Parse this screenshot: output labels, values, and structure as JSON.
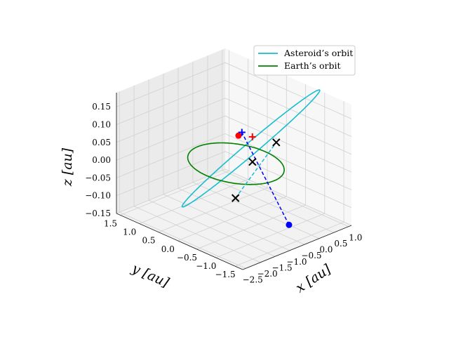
{
  "chart_data": {
    "type": "line",
    "projection": "3d",
    "title": "",
    "xlabel": "x [au]",
    "ylabel": "y [au]",
    "zlabel": "z [au]",
    "xlim": [
      -2.6,
      1.1
    ],
    "ylim": [
      -1.7,
      1.6
    ],
    "zlim": [
      -0.15,
      0.19
    ],
    "x_ticks": [
      -2.5,
      -2.0,
      -1.5,
      -1.0,
      -0.5,
      0.0,
      0.5,
      1.0
    ],
    "x_tick_labels": [
      "−2.5",
      "−2.0",
      "−1.5",
      "−1.0",
      "−0.5",
      "0.0",
      "0.5",
      "1.0"
    ],
    "y_ticks": [
      -1.5,
      -1.0,
      -0.5,
      0.0,
      0.5,
      1.0,
      1.5
    ],
    "y_tick_labels": [
      "−1.5",
      "−1.0",
      "−0.5",
      "0.0",
      "0.5",
      "1.0",
      "1.5"
    ],
    "z_ticks": [
      -0.15,
      -0.1,
      -0.05,
      0.0,
      0.05,
      0.1,
      0.15
    ],
    "z_tick_labels": [
      "−0.15",
      "−0.10",
      "−0.05",
      "0.00",
      "0.05",
      "0.10",
      "0.15"
    ],
    "grid": true,
    "legend_position": "top-right",
    "series": [
      {
        "name": "Asteroid’s orbit",
        "color": "#17becf",
        "kind": "ellipse",
        "a": 1.55,
        "e": 0.42,
        "inc_deg": 7.8,
        "node_deg": 200,
        "peri_deg": 350
      },
      {
        "name": "Earth’s orbit",
        "color": "#008000",
        "kind": "ellipse",
        "a": 1.0,
        "e": 0.017,
        "inc_deg": 0,
        "node_deg": 0,
        "peri_deg": 0
      }
    ],
    "points": [
      {
        "id": "asteroid-node-descending",
        "marker": "x",
        "color": "#000000",
        "x": -2.0,
        "y": -1.05,
        "z": 0.0
      },
      {
        "id": "earth-position",
        "marker": "o",
        "color": "#ff0000",
        "x": 0.55,
        "y": 0.83,
        "z": 0.0
      },
      {
        "id": "earth-target",
        "marker": "+",
        "color": "#ff0000",
        "x": 0.75,
        "y": 0.62,
        "z": 0.0
      },
      {
        "id": "asteroid-position",
        "marker": "+",
        "color": "#0000ff",
        "x": 0.6,
        "y": 0.78,
        "z": 0.01
      },
      {
        "id": "asteroid-node-ascending",
        "marker": "x",
        "color": "#000000",
        "x": 0.95,
        "y": 0.15,
        "z": 0.0
      },
      {
        "id": "origin-marker",
        "marker": "x",
        "color": "#000000",
        "x": -0.25,
        "y": -0.15,
        "z": 0.0
      },
      {
        "id": "asteroid-lowest",
        "marker": "o",
        "color": "#0000ff",
        "x": -0.7,
        "y": -1.45,
        "z": -0.1
      }
    ],
    "lines": [
      {
        "id": "line-of-nodes",
        "style": "dashed",
        "color": "#17becf",
        "from": "asteroid-node-descending",
        "to": "asteroid-node-ascending"
      },
      {
        "id": "asteroid-depth-line",
        "style": "dashed",
        "color": "#0000ff",
        "from": "asteroid-lowest",
        "to": "asteroid-position"
      }
    ]
  },
  "legend": {
    "items": [
      {
        "label": "Asteroid’s orbit",
        "color": "#17becf"
      },
      {
        "label": "Earth’s orbit",
        "color": "#008000"
      }
    ]
  }
}
